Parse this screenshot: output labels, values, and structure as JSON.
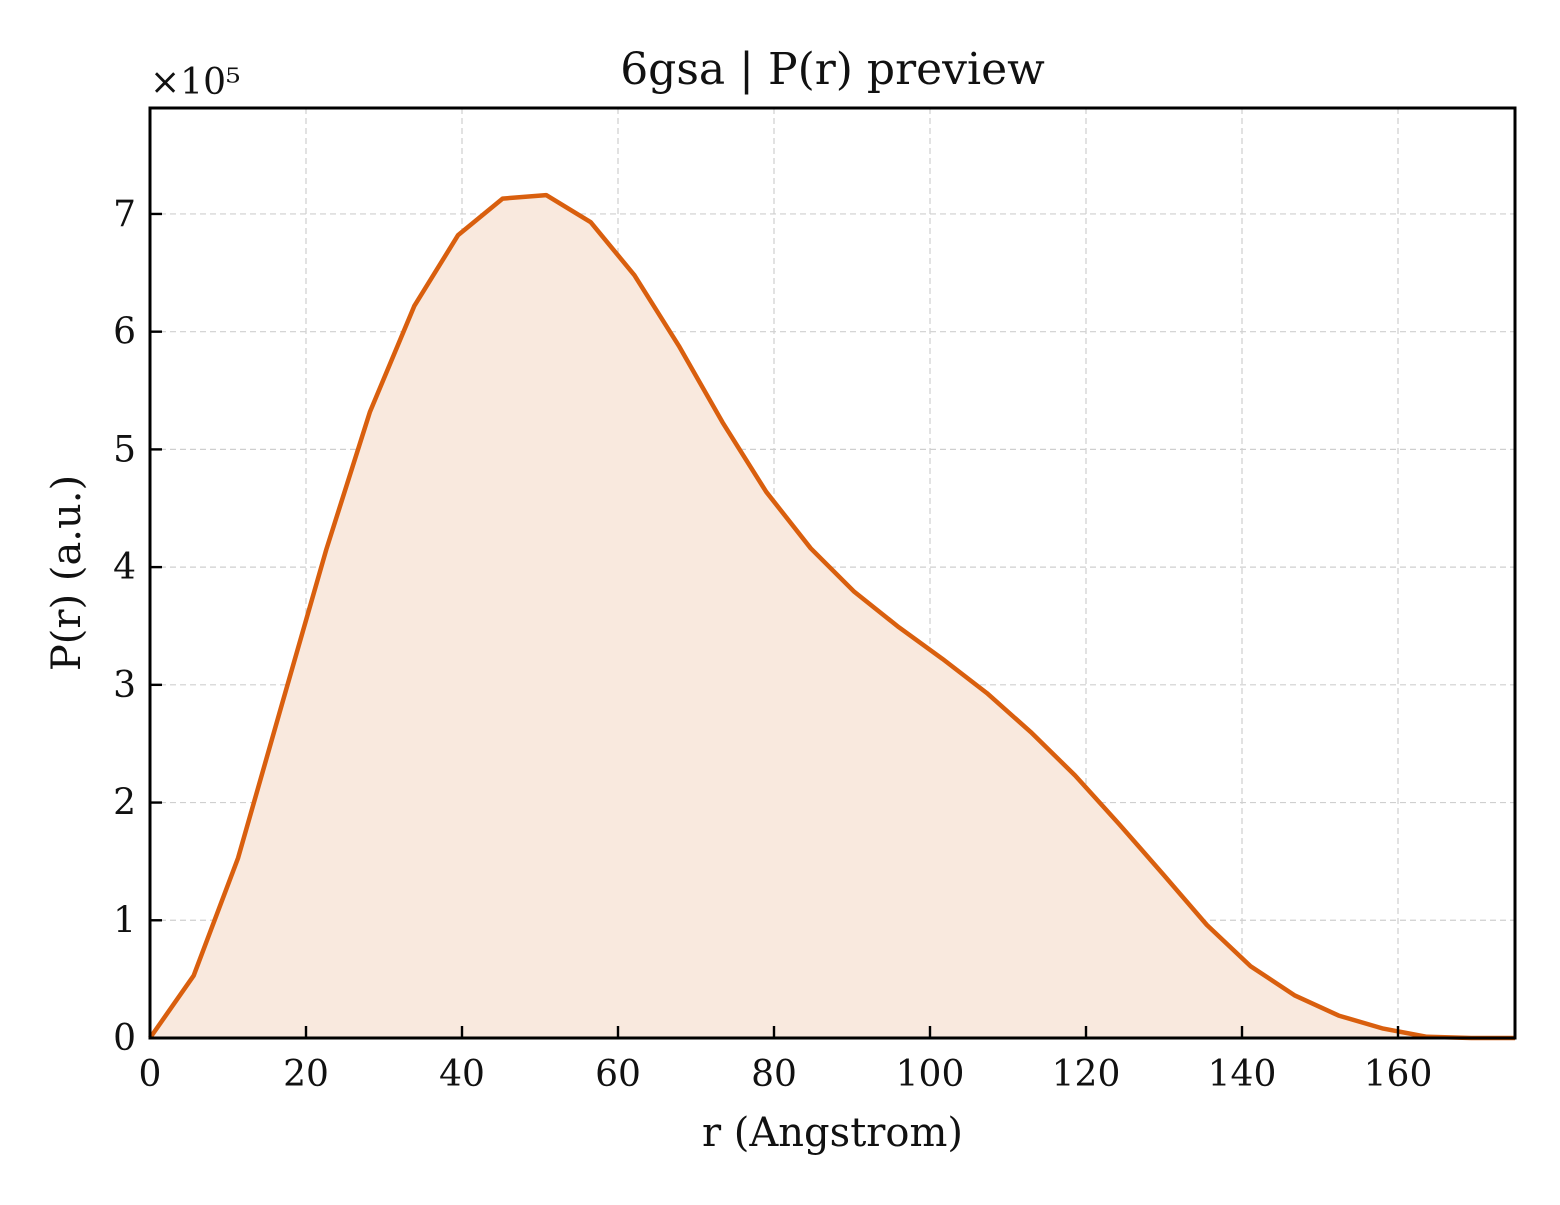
{
  "chart_data": {
    "type": "area",
    "title": "6gsa | P(r) preview",
    "xlabel": "r (Angstrom)",
    "ylabel": "P(r) (a.u.)",
    "y_multiplier_label": "×10⁵",
    "y_multiplier": 100000,
    "xlim": [
      0,
      175
    ],
    "ylim": [
      0,
      7.9
    ],
    "xticks": [
      0,
      20,
      40,
      60,
      80,
      100,
      120,
      140,
      160
    ],
    "xtick_labels": [
      "0",
      "20",
      "40",
      "60",
      "80",
      "100",
      "120",
      "140",
      "160"
    ],
    "yticks": [
      0,
      1,
      2,
      3,
      4,
      5,
      6,
      7
    ],
    "ytick_labels": [
      "0",
      "1",
      "2",
      "3",
      "4",
      "5",
      "6",
      "7"
    ],
    "grid": true,
    "legend": "none",
    "line_color": "#d95f0e",
    "fill_color": "#f9e9de",
    "series": [
      {
        "x": [
          0,
          5.6,
          11.3,
          16.9,
          22.6,
          28.2,
          33.9,
          39.5,
          45.2,
          50.8,
          56.5,
          62.1,
          67.8,
          73.4,
          79.0,
          84.7,
          90.3,
          96.0,
          101.6,
          107.3,
          112.9,
          118.6,
          124.2,
          129.9,
          135.5,
          141.1,
          146.8,
          152.4,
          158.1,
          163.7,
          169.4,
          175.0
        ],
        "y": [
          0,
          0.53,
          1.53,
          2.83,
          4.15,
          5.32,
          6.22,
          6.82,
          7.13,
          7.16,
          6.93,
          6.48,
          5.88,
          5.23,
          4.64,
          4.16,
          3.79,
          3.49,
          3.22,
          2.93,
          2.6,
          2.23,
          1.82,
          1.39,
          0.96,
          0.61,
          0.36,
          0.19,
          0.08,
          0.01,
          0.0,
          0.0
        ]
      }
    ]
  }
}
